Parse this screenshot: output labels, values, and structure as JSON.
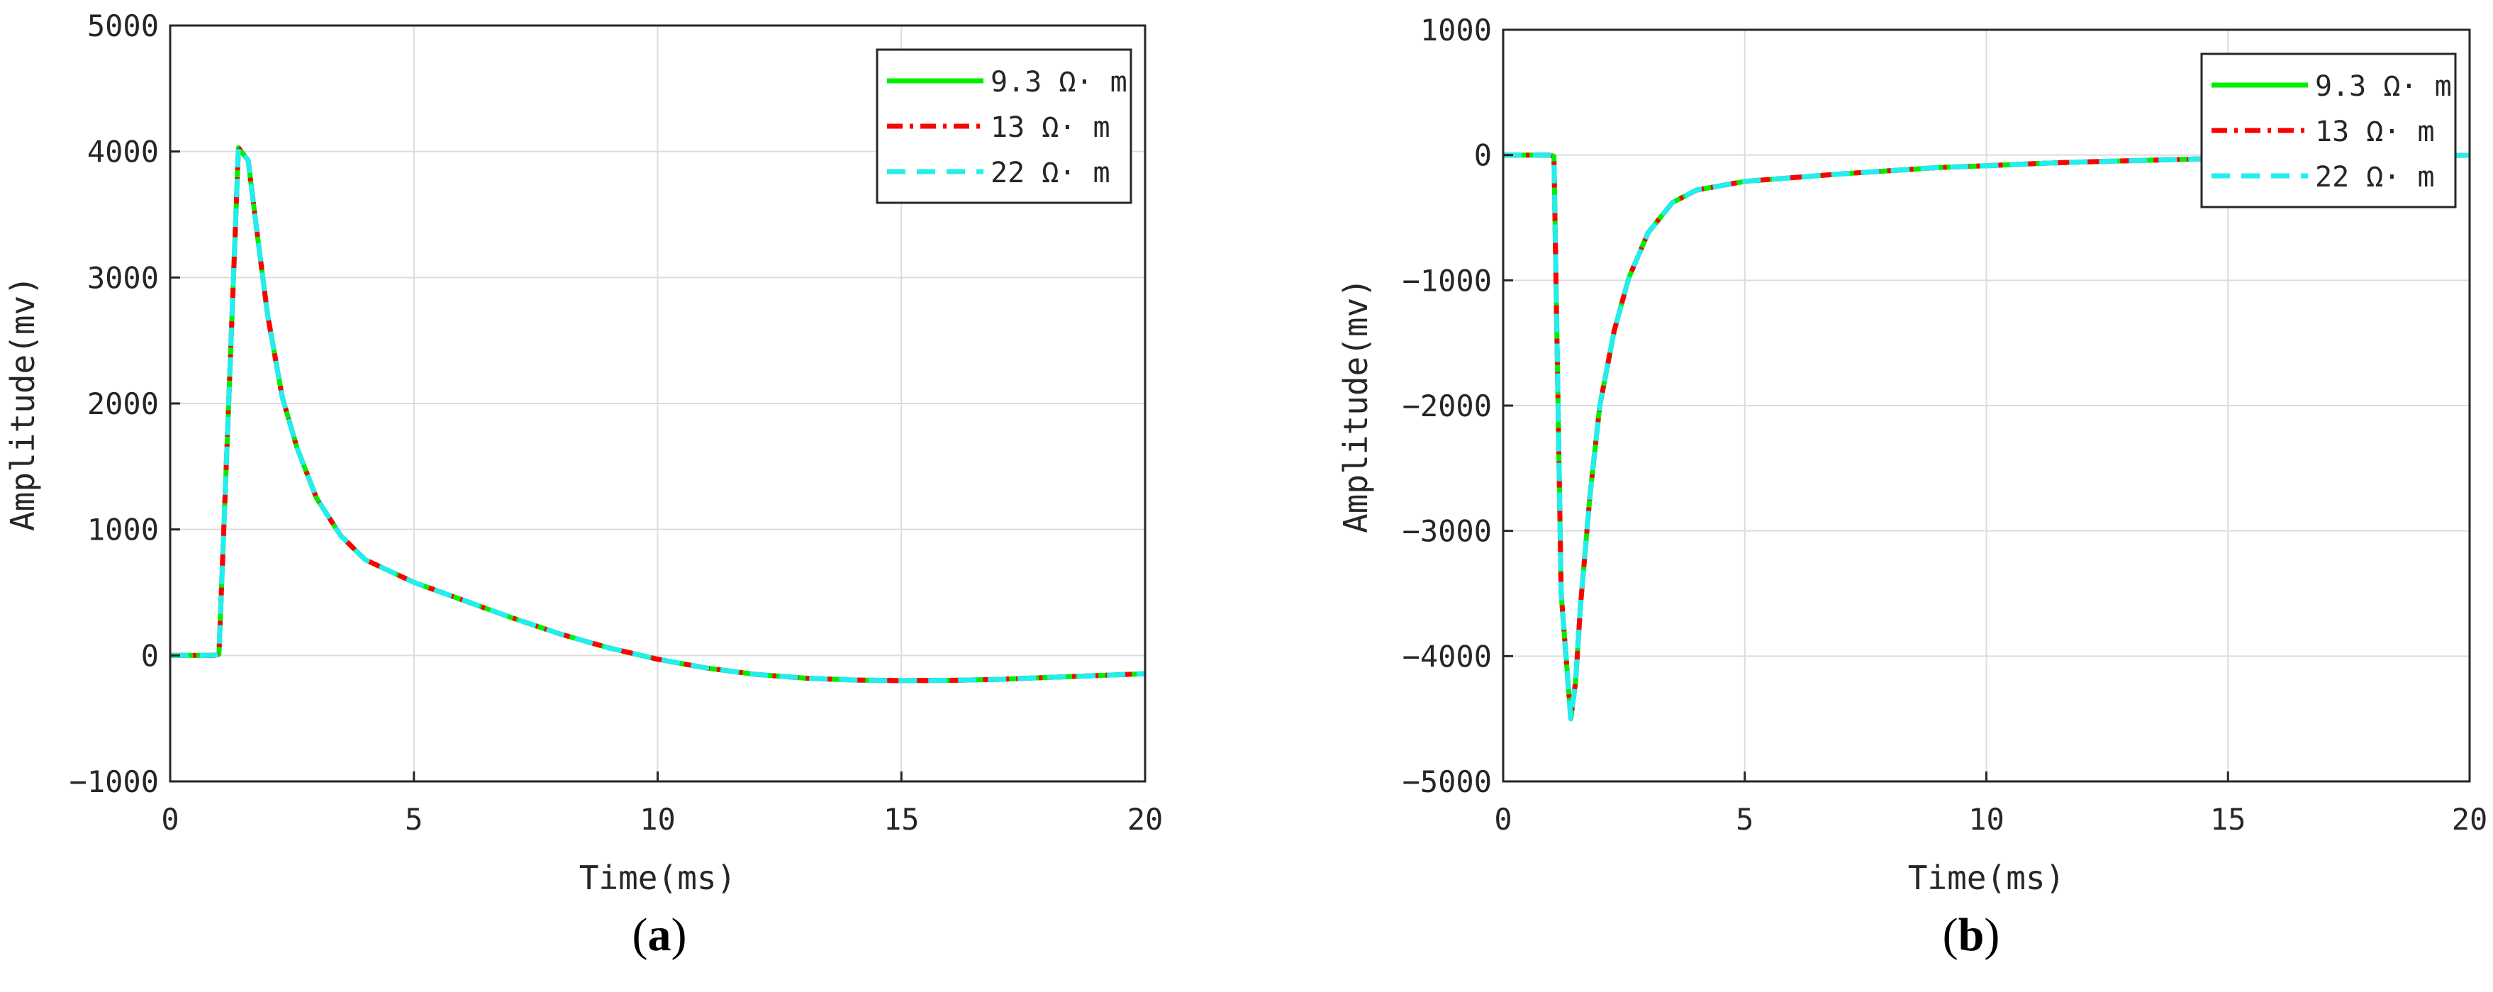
{
  "chart_data": [
    {
      "type": "line",
      "panel_label": "(a)",
      "xlabel": "Time(ms)",
      "ylabel": "Amplitude(mv)",
      "xlim": [
        0,
        20
      ],
      "ylim": [
        -1000,
        5000
      ],
      "xticks": [
        0,
        5,
        10,
        15,
        20
      ],
      "yticks": [
        -1000,
        0,
        1000,
        2000,
        3000,
        4000,
        5000
      ],
      "xtick_labels": [
        "0",
        "5",
        "10",
        "15",
        "20"
      ],
      "ytick_labels": [
        "−1000",
        "0",
        "1000",
        "2000",
        "3000",
        "4000",
        "5000"
      ],
      "grid": true,
      "legend_position": "top-right",
      "series": [
        {
          "name": "9.3 Ω· m",
          "color": "#00ee00",
          "style": "solid"
        },
        {
          "name": "13 Ω· m",
          "color": "#ff0000",
          "style": "dashdot"
        },
        {
          "name": "22 Ω· m",
          "color": "#22eeee",
          "style": "dashed"
        }
      ],
      "x": [
        0,
        0.5,
        0.9,
        1.0,
        1.2,
        1.4,
        1.5,
        1.6,
        1.8,
        2.0,
        2.3,
        2.6,
        3.0,
        3.5,
        4.0,
        5.0,
        6.0,
        7.0,
        8.0,
        9.0,
        10.0,
        11.0,
        12.0,
        13.0,
        14.0,
        15.0,
        16.0,
        17.0,
        18.0,
        19.0,
        20.0
      ],
      "values": [
        0,
        0,
        0,
        10,
        2000,
        4030,
        3980,
        3930,
        3300,
        2700,
        2050,
        1650,
        1250,
        950,
        760,
        580,
        440,
        300,
        170,
        60,
        -30,
        -100,
        -150,
        -180,
        -195,
        -200,
        -198,
        -190,
        -175,
        -160,
        -145
      ]
    },
    {
      "type": "line",
      "panel_label": "(b)",
      "xlabel": "Time(ms)",
      "ylabel": "Amplitude(mv)",
      "xlim": [
        0,
        20
      ],
      "ylim": [
        -5000,
        1000
      ],
      "xticks": [
        0,
        5,
        10,
        15,
        20
      ],
      "yticks": [
        -5000,
        -4000,
        -3000,
        -2000,
        -1000,
        0,
        1000
      ],
      "xtick_labels": [
        "0",
        "5",
        "10",
        "15",
        "20"
      ],
      "ytick_labels": [
        "−5000",
        "−4000",
        "−3000",
        "−2000",
        "−1000",
        "0",
        "1000"
      ],
      "grid": true,
      "legend_position": "top-right",
      "series": [
        {
          "name": "9.3 Ω· m",
          "color": "#00ee00",
          "style": "solid"
        },
        {
          "name": "13 Ω· m",
          "color": "#ff0000",
          "style": "dashdot"
        },
        {
          "name": "22 Ω· m",
          "color": "#22eeee",
          "style": "dashed"
        }
      ],
      "x": [
        0,
        0.5,
        0.95,
        1.05,
        1.2,
        1.4,
        1.5,
        1.6,
        1.8,
        2.0,
        2.3,
        2.6,
        3.0,
        3.5,
        4.0,
        5.0,
        6.0,
        7.0,
        8.0,
        9.0,
        10.0,
        11.0,
        12.0,
        13.0,
        14.0,
        15.0,
        16.0,
        17.0,
        18.0,
        19.0,
        20.0
      ],
      "values": [
        0,
        0,
        0,
        -10,
        -3500,
        -4500,
        -4200,
        -3600,
        -2700,
        -2000,
        -1400,
        -980,
        -620,
        -380,
        -280,
        -210,
        -180,
        -150,
        -125,
        -100,
        -85,
        -68,
        -55,
        -45,
        -35,
        -25,
        -18,
        -12,
        -8,
        -4,
        -2
      ]
    }
  ]
}
